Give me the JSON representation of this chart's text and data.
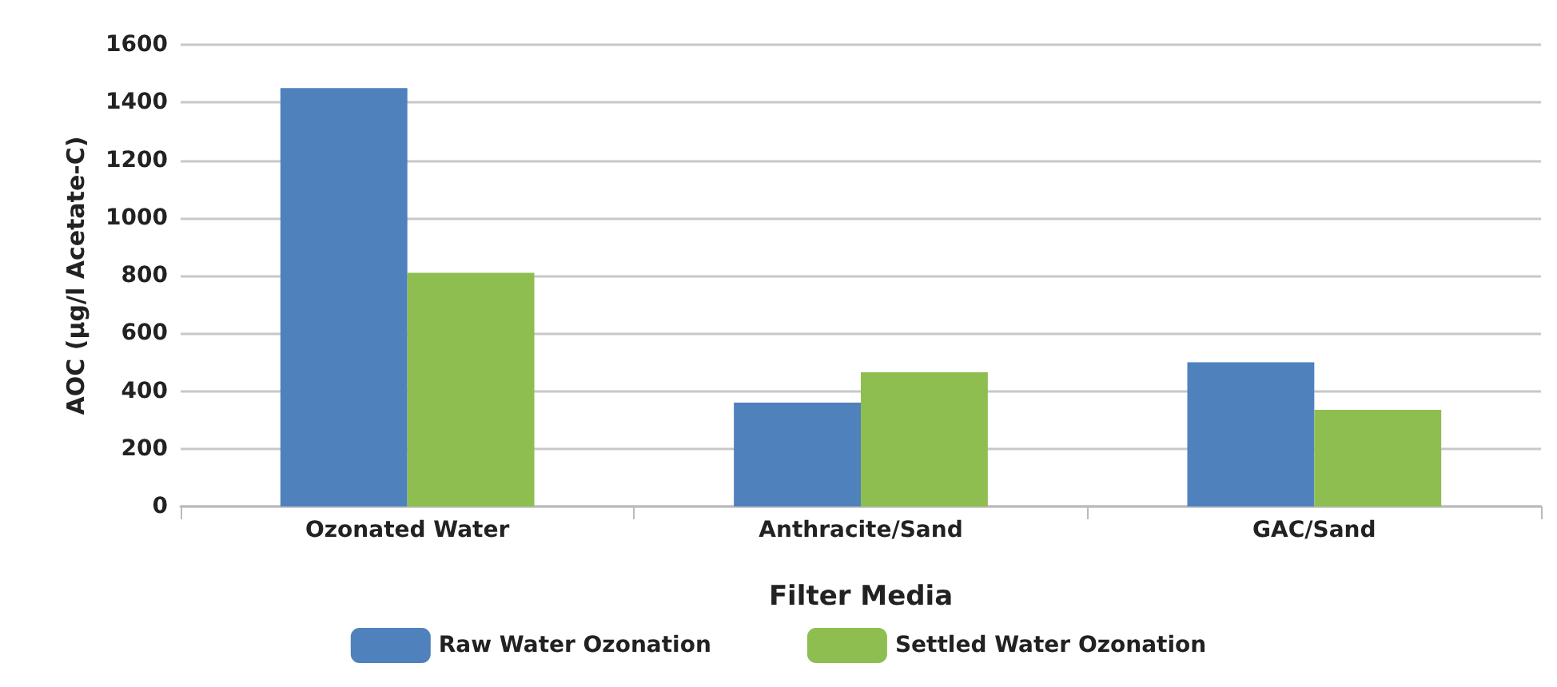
{
  "chart_data": {
    "type": "bar",
    "xlabel": "Filter Media",
    "ylabel": "AOC (µg/l Acetate-C)",
    "categories": [
      "Ozonated Water",
      "Anthracite/Sand",
      "GAC/Sand"
    ],
    "series": [
      {
        "name": "Raw Water Ozonation",
        "color": "#4f81bd",
        "values": [
          1450,
          360,
          500
        ]
      },
      {
        "name": "Settled Water Ozonation",
        "color": "#8fbe50",
        "values": [
          810,
          465,
          335
        ]
      }
    ],
    "ylim": [
      0,
      1600
    ],
    "yticks": [
      0,
      200,
      400,
      600,
      800,
      1000,
      1200,
      1400,
      1600
    ],
    "grid": "y",
    "legend": "bottom"
  }
}
